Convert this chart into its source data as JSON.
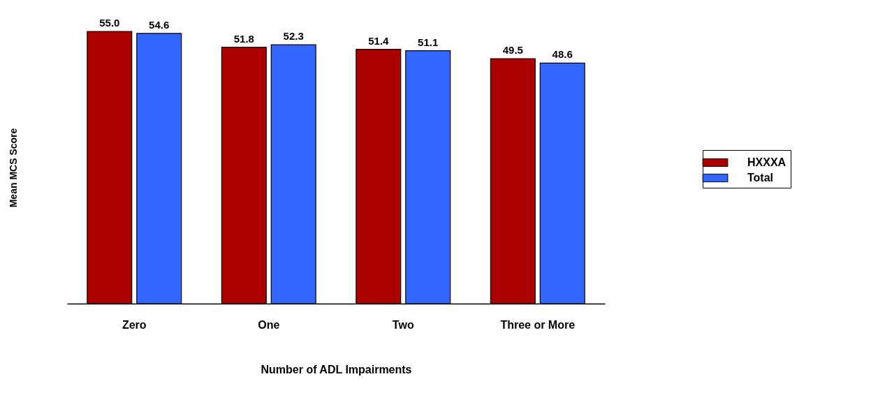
{
  "chart_data": {
    "type": "bar",
    "xlabel": "Number of ADL Impairments",
    "ylabel": "Mean MCS Score",
    "categories": [
      "Zero",
      "One",
      "Two",
      "Three or More"
    ],
    "series": [
      {
        "name": "HXXXA",
        "color": "#aa0000",
        "values": [
          55.0,
          51.8,
          51.4,
          49.5
        ],
        "value_labels": [
          "55.0",
          "51.8",
          "51.4",
          "49.5"
        ]
      },
      {
        "name": "Total",
        "color": "#3366ff",
        "values": [
          54.6,
          52.3,
          51.1,
          48.6
        ],
        "value_labels": [
          "54.6",
          "52.3",
          "51.1",
          "48.6"
        ]
      }
    ],
    "legend": "right",
    "tick_labels": "x",
    "grid": false
  }
}
